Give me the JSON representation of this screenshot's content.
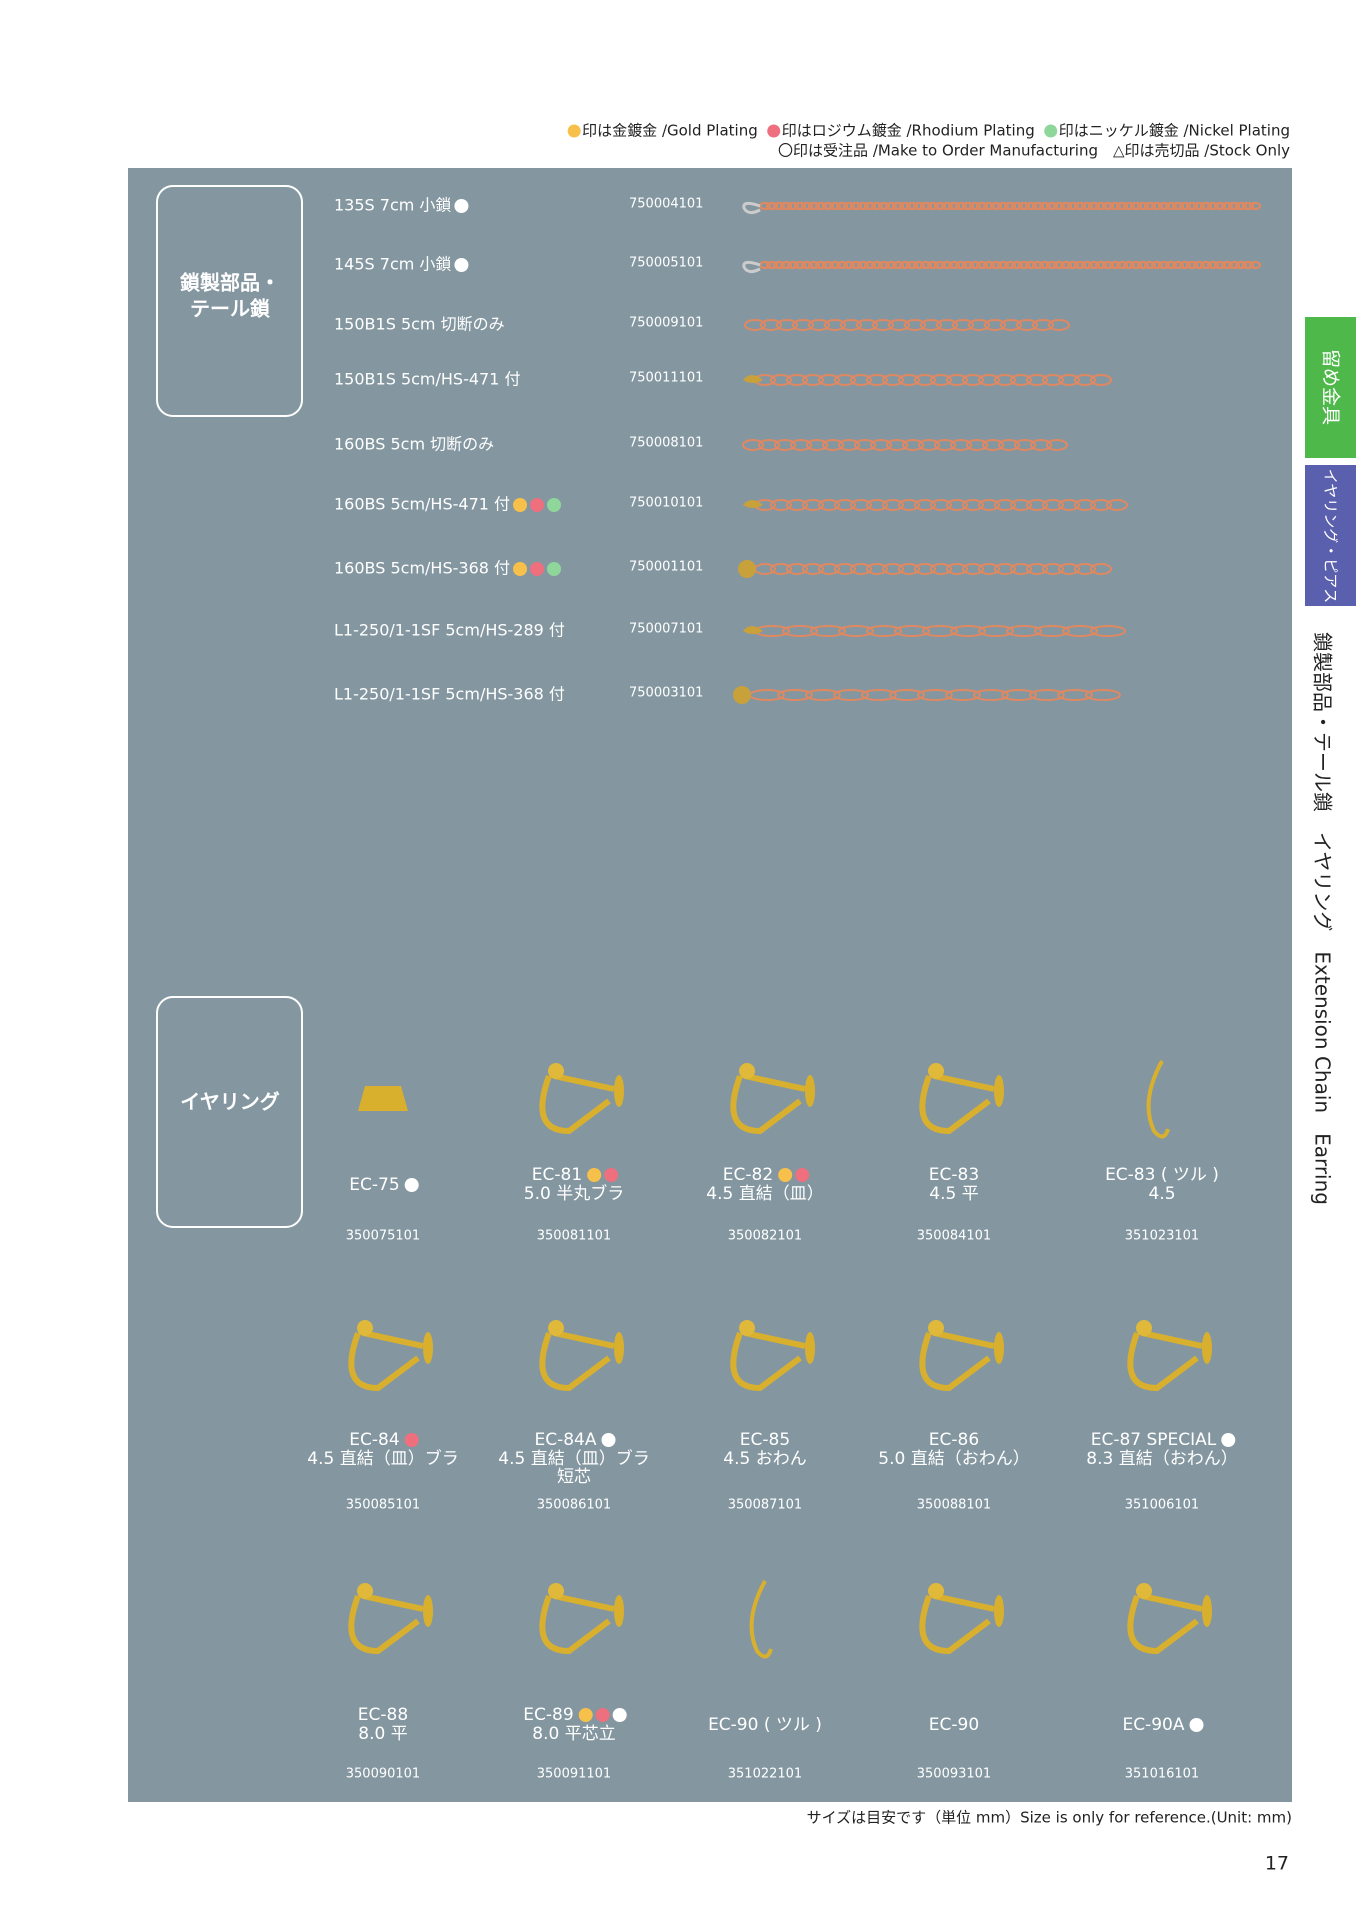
{
  "legend": {
    "items": [
      {
        "color": "#f7c04a",
        "text": "印は金鍍金 /Gold Plating"
      },
      {
        "color": "#ee6f7e",
        "text": "印はロジウム鍍金 /Rhodium Plating"
      },
      {
        "color": "#8fd69a",
        "text": "印はニッケル鍍金 /Nickel Plating"
      }
    ],
    "note": "〇印は受注品 /Make to Order Manufacturing　△印は売切品 /Stock Only"
  },
  "chain_section": {
    "label": [
      "鎖製部品・",
      "テール鎖"
    ],
    "items": [
      {
        "name": "135S 7cm 小鎖",
        "code": "750004101",
        "dots": [
          "#ffffff"
        ]
      },
      {
        "name": "145S 7cm 小鎖",
        "code": "750005101",
        "dots": [
          "#ffffff"
        ]
      },
      {
        "name": "150B1S  5cm 切断のみ",
        "code": "750009101",
        "dots": []
      },
      {
        "name": "150B1S 5cm/HS-471 付",
        "code": "750011101",
        "dots": []
      },
      {
        "name": "160BS 5cm 切断のみ",
        "code": "750008101",
        "dots": []
      },
      {
        "name": "160BS 5cm/HS-471 付",
        "code": "750010101",
        "dots": [
          "#f7c04a",
          "#ee6f7e",
          "#8fd69a"
        ]
      },
      {
        "name": "160BS 5cm/HS-368 付",
        "code": "750001101",
        "dots": [
          "#f7c04a",
          "#ee6f7e",
          "#8fd69a"
        ]
      },
      {
        "name": "L1-250/1-1SF 5cm/HS-289 付",
        "code": "750007101",
        "dots": []
      },
      {
        "name": "L1-250/1-1SF 5cm/HS-368 付",
        "code": "750003101",
        "dots": []
      }
    ]
  },
  "earring_section": {
    "label": "イヤリング",
    "items": [
      {
        "name": "EC-75",
        "dots": [
          "#ffffff"
        ],
        "desc": [],
        "code": "350075101"
      },
      {
        "name": "EC-81",
        "dots": [
          "#f7c04a",
          "#ee6f7e"
        ],
        "desc": [
          "5.0 半丸ブラ"
        ],
        "code": "350081101"
      },
      {
        "name": "EC-82",
        "dots": [
          "#f7c04a",
          "#ee6f7e"
        ],
        "desc": [
          "4.5 直結（皿）"
        ],
        "code": "350082101"
      },
      {
        "name": "EC-83",
        "dots": [],
        "desc": [
          "4.5 平"
        ],
        "code": "350084101"
      },
      {
        "name": "EC-83 ( ツル )",
        "dots": [],
        "desc": [
          "4.5"
        ],
        "code": "351023101"
      },
      {
        "name": "EC-84",
        "dots": [
          "#ee6f7e"
        ],
        "desc": [
          "4.5 直結（皿）ブラ"
        ],
        "code": "350085101"
      },
      {
        "name": "EC-84A",
        "dots": [
          "#ffffff"
        ],
        "desc": [
          "4.5 直結（皿）ブラ",
          "短芯"
        ],
        "code": "350086101"
      },
      {
        "name": "EC-85",
        "dots": [],
        "desc": [
          "4.5 おわん"
        ],
        "code": "350087101"
      },
      {
        "name": "EC-86",
        "dots": [],
        "desc": [
          "5.0 直結（おわん）"
        ],
        "code": "350088101"
      },
      {
        "name": "EC-87 SPECIAL",
        "dots": [
          "#ffffff"
        ],
        "desc": [
          "8.3 直結（おわん）"
        ],
        "code": "351006101"
      },
      {
        "name": "EC-88",
        "dots": [],
        "desc": [
          "8.0 平"
        ],
        "code": "350090101"
      },
      {
        "name": "EC-89",
        "dots": [
          "#f7c04a",
          "#ee6f7e",
          "#ffffff"
        ],
        "desc": [
          "8.0 平芯立"
        ],
        "code": "350091101"
      },
      {
        "name": "EC-90 ( ツル )",
        "dots": [],
        "desc": [],
        "code": "351022101"
      },
      {
        "name": "EC-90",
        "dots": [],
        "desc": [],
        "code": "350093101"
      },
      {
        "name": "EC-90A",
        "dots": [
          "#ffffff"
        ],
        "desc": [],
        "code": "351016101"
      }
    ]
  },
  "side": {
    "tabs": [
      "留め金具",
      "イヤリング・ピアス"
    ],
    "index": "鎖製部品・テール鎖　イヤリング　Extension Chain　Earring"
  },
  "footer": {
    "note": "サイズは目安です（単位 mm）Size is only for reference.(Unit: mm)",
    "page": "17"
  }
}
